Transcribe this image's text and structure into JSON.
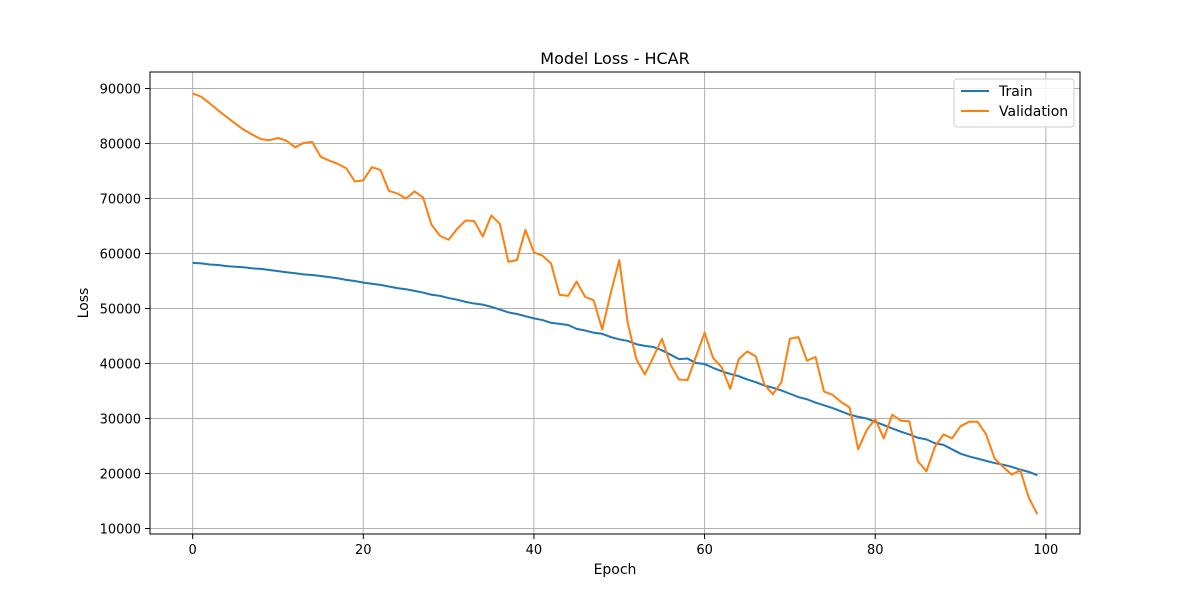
{
  "chart_data": {
    "type": "line",
    "title": "Model Loss - HCAR",
    "xlabel": "Epoch",
    "ylabel": "Loss",
    "xlim": [
      -5,
      104
    ],
    "ylim": [
      9000,
      93000
    ],
    "xticks": [
      0,
      20,
      40,
      60,
      80,
      100
    ],
    "yticks": [
      10000,
      20000,
      30000,
      40000,
      50000,
      60000,
      70000,
      80000,
      90000
    ],
    "grid": true,
    "legend_position": "top-right",
    "series": [
      {
        "name": "Train",
        "color": "#1f77b4",
        "x": [
          0,
          1,
          2,
          3,
          4,
          5,
          6,
          7,
          8,
          9,
          10,
          11,
          12,
          13,
          14,
          15,
          16,
          17,
          18,
          19,
          20,
          21,
          22,
          23,
          24,
          25,
          26,
          27,
          28,
          29,
          30,
          31,
          32,
          33,
          34,
          35,
          36,
          37,
          38,
          39,
          40,
          41,
          42,
          43,
          44,
          45,
          46,
          47,
          48,
          49,
          50,
          51,
          52,
          53,
          54,
          55,
          56,
          57,
          58,
          59,
          60,
          61,
          62,
          63,
          64,
          65,
          66,
          67,
          68,
          69,
          70,
          71,
          72,
          73,
          74,
          75,
          76,
          77,
          78,
          79,
          80,
          81,
          82,
          83,
          84,
          85,
          86,
          87,
          88,
          89,
          90,
          91,
          92,
          93,
          94,
          95,
          96,
          97,
          98,
          99
        ],
        "values": [
          58300,
          58200,
          58000,
          57900,
          57700,
          57600,
          57500,
          57300,
          57200,
          57000,
          56800,
          56600,
          56400,
          56200,
          56100,
          55900,
          55700,
          55500,
          55200,
          55000,
          54700,
          54500,
          54300,
          54000,
          53700,
          53500,
          53200,
          52900,
          52500,
          52300,
          51900,
          51600,
          51200,
          50900,
          50700,
          50300,
          49800,
          49300,
          49000,
          48600,
          48200,
          47900,
          47400,
          47200,
          47000,
          46300,
          46000,
          45600,
          45400,
          44800,
          44400,
          44100,
          43500,
          43200,
          43000,
          42400,
          41600,
          40800,
          40900,
          40100,
          39900,
          39200,
          38600,
          38100,
          37700,
          37100,
          36600,
          36000,
          35600,
          35100,
          34500,
          33900,
          33500,
          32900,
          32400,
          31900,
          31300,
          30700,
          30300,
          30000,
          29400,
          28800,
          28200,
          27600,
          27100,
          26500,
          26200,
          25500,
          25200,
          24400,
          23600,
          23100,
          22700,
          22300,
          21900,
          21600,
          21200,
          20700,
          20300,
          19700
        ]
      },
      {
        "name": "Validation",
        "color": "#ff7f0e",
        "x": [
          0,
          1,
          2,
          3,
          4,
          5,
          6,
          7,
          8,
          9,
          10,
          11,
          12,
          13,
          14,
          15,
          16,
          17,
          18,
          19,
          20,
          21,
          22,
          23,
          24,
          25,
          26,
          27,
          28,
          29,
          30,
          31,
          32,
          33,
          34,
          35,
          36,
          37,
          38,
          39,
          40,
          41,
          42,
          43,
          44,
          45,
          46,
          47,
          48,
          49,
          50,
          51,
          52,
          53,
          54,
          55,
          56,
          57,
          58,
          59,
          60,
          61,
          62,
          63,
          64,
          65,
          66,
          67,
          68,
          69,
          70,
          71,
          72,
          73,
          74,
          75,
          76,
          77,
          78,
          79,
          80,
          81,
          82,
          83,
          84,
          85,
          86,
          87,
          88,
          89,
          90,
          91,
          92,
          93,
          94,
          95,
          96,
          97,
          98,
          99
        ],
        "values": [
          89100,
          88500,
          87300,
          86000,
          84800,
          83600,
          82500,
          81600,
          80800,
          80600,
          81000,
          80500,
          79300,
          80100,
          80300,
          77600,
          76900,
          76300,
          75500,
          73100,
          73300,
          75700,
          75200,
          71400,
          70900,
          70000,
          71300,
          70200,
          65200,
          63200,
          62500,
          64500,
          66000,
          65900,
          63100,
          66900,
          65400,
          58500,
          58800,
          64300,
          60200,
          59600,
          58200,
          52500,
          52300,
          54900,
          52100,
          51500,
          46200,
          52800,
          58800,
          47300,
          40800,
          38000,
          41200,
          44500,
          39800,
          37100,
          37000,
          41300,
          45600,
          41000,
          39300,
          35400,
          40800,
          42200,
          41300,
          36200,
          34400,
          36600,
          44500,
          44800,
          40500,
          41200,
          34900,
          34300,
          33000,
          32000,
          24400,
          27900,
          29900,
          26400,
          30700,
          29600,
          29500,
          22200,
          20400,
          24900,
          27100,
          26400,
          28600,
          29400,
          29400,
          27100,
          22700,
          21200,
          19800,
          20600,
          15600,
          12600
        ]
      }
    ]
  }
}
